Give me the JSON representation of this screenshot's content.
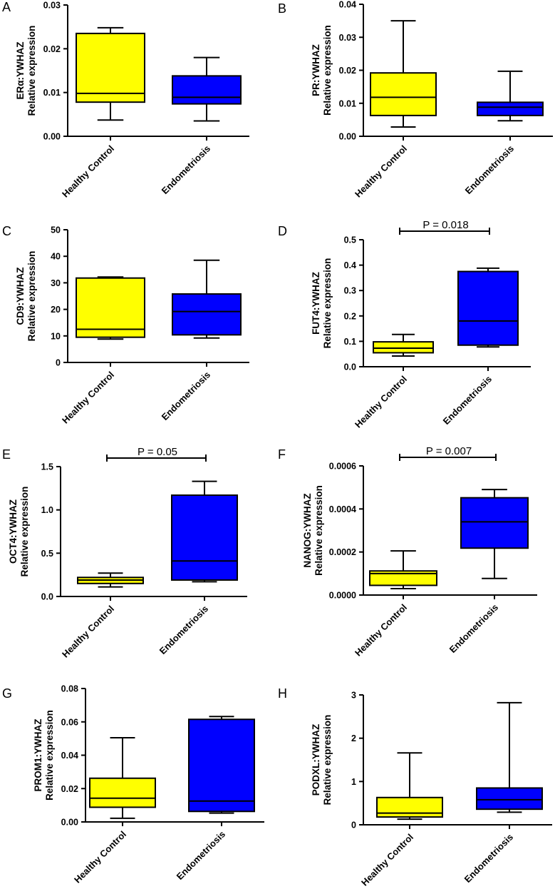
{
  "figure": {
    "colors": {
      "healthy": "#ffff00",
      "endo": "#0000ff",
      "stroke": "#000000"
    },
    "panels_order": [
      "A",
      "B",
      "C",
      "D",
      "E",
      "F",
      "G",
      "H"
    ]
  },
  "chart_data": [
    {
      "panel": "A",
      "type": "box",
      "ylabel_gene": "ERα:YWHAZ",
      "ylabel_sub": "Relative expression",
      "ylim": [
        0,
        0.03
      ],
      "yticks": [
        "0.00",
        "0.01",
        "0.02",
        "0.03"
      ],
      "ytick_values": [
        0,
        0.01,
        0.02,
        0.03
      ],
      "categories": [
        "Healthy Control",
        "Endometriosis"
      ],
      "series": [
        {
          "name": "Healthy Control",
          "min": 0.0037,
          "q1": 0.0078,
          "median": 0.0098,
          "q3": 0.0235,
          "max": 0.0248
        },
        {
          "name": "Endometriosis",
          "min": 0.0035,
          "q1": 0.0074,
          "median": 0.0089,
          "q3": 0.0138,
          "max": 0.018
        }
      ],
      "pvalue": null
    },
    {
      "panel": "B",
      "type": "box",
      "ylabel_gene": "PR:YWHAZ",
      "ylabel_sub": "Relative expression",
      "ylim": [
        0,
        0.04
      ],
      "yticks": [
        "0.00",
        "0.01",
        "0.02",
        "0.03",
        "0.04"
      ],
      "ytick_values": [
        0,
        0.01,
        0.02,
        0.03,
        0.04
      ],
      "categories": [
        "Healthy Control",
        "Endometriosis"
      ],
      "series": [
        {
          "name": "Healthy Control",
          "min": 0.0028,
          "q1": 0.0063,
          "median": 0.0118,
          "q3": 0.0192,
          "max": 0.035
        },
        {
          "name": "Endometriosis",
          "min": 0.0047,
          "q1": 0.0063,
          "median": 0.0088,
          "q3": 0.0103,
          "max": 0.0197
        }
      ],
      "pvalue": null
    },
    {
      "panel": "C",
      "type": "box",
      "ylabel_gene": "CD9:YWHAZ",
      "ylabel_sub": "Relative expression",
      "ylim": [
        0,
        50
      ],
      "yticks": [
        "0",
        "10",
        "20",
        "30",
        "40",
        "50"
      ],
      "ytick_values": [
        0,
        10,
        20,
        30,
        40,
        50
      ],
      "categories": [
        "Healthy Control",
        "Endometriosis"
      ],
      "series": [
        {
          "name": "Healthy Control",
          "min": 8.8,
          "q1": 9.5,
          "median": 12.5,
          "q3": 31.8,
          "max": 32.2
        },
        {
          "name": "Endometriosis",
          "min": 9.2,
          "q1": 10.4,
          "median": 19.2,
          "q3": 25.8,
          "max": 38.5
        }
      ],
      "pvalue": null
    },
    {
      "panel": "D",
      "type": "box",
      "ylabel_gene": "FUT4:YWHAZ",
      "ylabel_sub": "Relative expression",
      "ylim": [
        0,
        0.5
      ],
      "yticks": [
        "0.0",
        "0.1",
        "0.2",
        "0.3",
        "0.4",
        "0.5"
      ],
      "ytick_values": [
        0,
        0.1,
        0.2,
        0.3,
        0.4,
        0.5
      ],
      "categories": [
        "Healthy Control",
        "Endometriosis"
      ],
      "series": [
        {
          "name": "Healthy Control",
          "min": 0.042,
          "q1": 0.055,
          "median": 0.073,
          "q3": 0.098,
          "max": 0.127
        },
        {
          "name": "Endometriosis",
          "min": 0.078,
          "q1": 0.085,
          "median": 0.18,
          "q3": 0.375,
          "max": 0.388
        }
      ],
      "pvalue": "P = 0.018"
    },
    {
      "panel": "E",
      "type": "box",
      "ylabel_gene": "OCT4:YWHAZ",
      "ylabel_sub": "Relative expression",
      "ylim": [
        0,
        1.5
      ],
      "yticks": [
        "0.0",
        "0.5",
        "1.0",
        "1.5"
      ],
      "ytick_values": [
        0,
        0.5,
        1.0,
        1.5
      ],
      "categories": [
        "Healthy Control",
        "Endometriosis"
      ],
      "series": [
        {
          "name": "Healthy Control",
          "min": 0.11,
          "q1": 0.15,
          "median": 0.19,
          "q3": 0.22,
          "max": 0.27
        },
        {
          "name": "Endometriosis",
          "min": 0.17,
          "q1": 0.19,
          "median": 0.41,
          "q3": 1.17,
          "max": 1.33
        }
      ],
      "pvalue": "P = 0.05"
    },
    {
      "panel": "F",
      "type": "box",
      "ylabel_gene": "NANOG:YWHAZ",
      "ylabel_sub": "Relative expression",
      "ylim": [
        0,
        0.0006
      ],
      "yticks": [
        "0.0000",
        "0.0002",
        "0.0004",
        "0.0006"
      ],
      "ytick_values": [
        0,
        0.0002,
        0.0004,
        0.0006
      ],
      "categories": [
        "Healthy Control",
        "Endometriosis"
      ],
      "series": [
        {
          "name": "Healthy Control",
          "min": 3e-05,
          "q1": 4.5e-05,
          "median": 0.0001,
          "q3": 0.000112,
          "max": 0.000205
        },
        {
          "name": "Endometriosis",
          "min": 7.7e-05,
          "q1": 0.000218,
          "median": 0.00034,
          "q3": 0.000452,
          "max": 0.00049
        }
      ],
      "pvalue": "P = 0.007"
    },
    {
      "panel": "G",
      "type": "box",
      "ylabel_gene": "PROM1:YWHAZ",
      "ylabel_sub": "Relative expression",
      "ylim": [
        0,
        0.08
      ],
      "yticks": [
        "0.00",
        "0.02",
        "0.04",
        "0.06",
        "0.08"
      ],
      "ytick_values": [
        0,
        0.02,
        0.04,
        0.06,
        0.08
      ],
      "categories": [
        "Healthy Control",
        "Endometriosis"
      ],
      "series": [
        {
          "name": "Healthy Control",
          "min": 0.0022,
          "q1": 0.0088,
          "median": 0.0142,
          "q3": 0.0262,
          "max": 0.0505
        },
        {
          "name": "Endometriosis",
          "min": 0.0053,
          "q1": 0.0063,
          "median": 0.0125,
          "q3": 0.0615,
          "max": 0.0632
        }
      ],
      "pvalue": null
    },
    {
      "panel": "H",
      "type": "box",
      "ylabel_gene": "PODXL:YWHAZ",
      "ylabel_sub": "Relative expression",
      "ylim": [
        0,
        3
      ],
      "yticks": [
        "0",
        "1",
        "2",
        "3"
      ],
      "ytick_values": [
        0,
        1,
        2,
        3
      ],
      "categories": [
        "Healthy Control",
        "Endometriosis"
      ],
      "series": [
        {
          "name": "Healthy Control",
          "min": 0.13,
          "q1": 0.18,
          "median": 0.27,
          "q3": 0.63,
          "max": 1.66
        },
        {
          "name": "Endometriosis",
          "min": 0.29,
          "q1": 0.36,
          "median": 0.58,
          "q3": 0.85,
          "max": 2.82
        }
      ],
      "pvalue": null
    }
  ]
}
